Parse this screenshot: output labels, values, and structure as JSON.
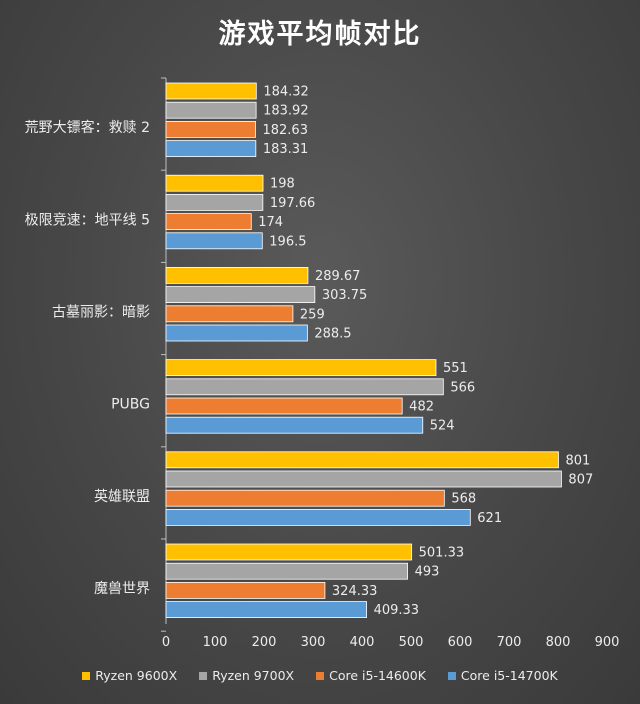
{
  "chart_data": {
    "type": "bar",
    "orientation": "horizontal",
    "title": "游戏平均帧对比",
    "categories": [
      "荒野大镖客：救赎 2",
      "极限竞速：地平线 5",
      "古墓丽影：暗影",
      "PUBG",
      "英雄联盟",
      "魔兽世界"
    ],
    "series": [
      {
        "name": "Ryzen 9600X",
        "color": "#ffc000",
        "values": [
          184.32,
          198,
          289.67,
          551,
          801,
          501.33
        ],
        "labels": [
          "184.32",
          "198",
          "289.67",
          "551",
          "801",
          "501.33"
        ]
      },
      {
        "name": "Ryzen 9700X",
        "color": "#a5a5a5",
        "values": [
          183.92,
          197.66,
          303.75,
          566,
          807,
          493
        ],
        "labels": [
          "183.92",
          "197.66",
          "303.75",
          "566",
          "807",
          "493"
        ]
      },
      {
        "name": "Core i5-14600K",
        "color": "#ed7d31",
        "values": [
          182.63,
          174,
          259,
          482,
          568,
          324.33
        ],
        "labels": [
          "182.63",
          "174",
          "259",
          "482",
          "568",
          "324.33"
        ]
      },
      {
        "name": "Core i5-14700K",
        "color": "#5b9bd5",
        "values": [
          183.31,
          196.5,
          288.5,
          524,
          621,
          409.33
        ],
        "labels": [
          "183.31",
          "196.5",
          "288.5",
          "524",
          "621",
          "409.33"
        ]
      }
    ],
    "xlim": [
      0,
      900
    ],
    "xticks": [
      0,
      100,
      200,
      300,
      400,
      500,
      600,
      700,
      800,
      900
    ],
    "xtick_labels": [
      "0",
      "100",
      "200",
      "300",
      "400",
      "500",
      "600",
      "700",
      "800",
      "900"
    ],
    "grid": false,
    "legend": "bottom"
  }
}
